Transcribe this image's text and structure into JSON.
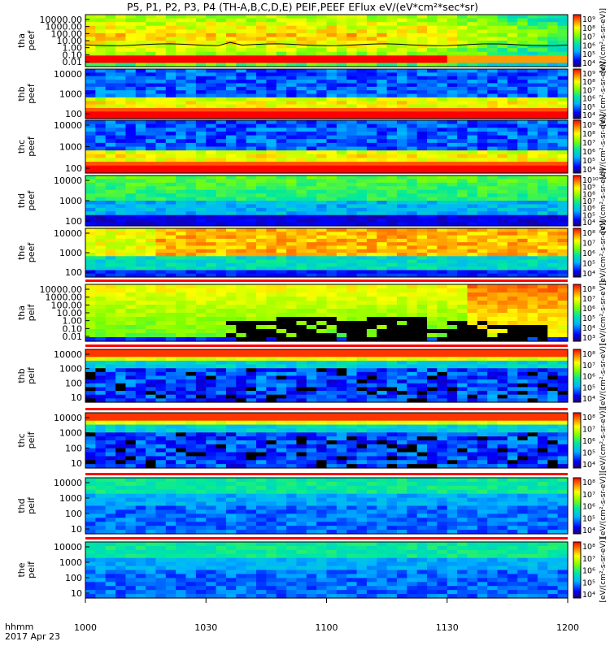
{
  "title": "P5, P1, P2, P3, P4 (TH-A,B,C,D,E) PEIF,PEEF EFlux eV/(eV*cm²*sec*sr)",
  "footer": {
    "time_label": "hhmm",
    "date": "2017 Apr 23"
  },
  "x_ticks": [
    "1000",
    "1030",
    "1100",
    "1130",
    "1200"
  ],
  "colorbar_label": "[eV/(cm²-s-sr-eV)]",
  "chart_data": [
    {
      "type": "heatmap",
      "id": "tha_peef",
      "ylabel": [
        "tha",
        "peef"
      ],
      "yticks": [
        "10000.00",
        "1000.00",
        "100.00",
        "10.00",
        "1.00",
        "0.10",
        "0.01"
      ],
      "cbar_ticks": [
        "10⁹",
        "10⁸",
        "10⁷",
        "10⁶",
        "10⁵",
        "10⁴"
      ],
      "overlay_line": true,
      "pattern": "electron-A"
    },
    {
      "type": "heatmap",
      "id": "thb_peef",
      "ylabel": [
        "thb",
        "peef"
      ],
      "yticks": [
        "10000",
        "1000",
        "100"
      ],
      "cbar_ticks": [
        "10⁹",
        "10⁸",
        "10⁷",
        "10⁶",
        "10⁵",
        "10⁴"
      ],
      "pattern": "electron-B"
    },
    {
      "type": "heatmap",
      "id": "thc_peef",
      "ylabel": [
        "thc",
        "peef"
      ],
      "yticks": [
        "10000",
        "1000",
        "100"
      ],
      "cbar_ticks": [
        "10⁹",
        "10⁸",
        "10⁷",
        "10⁶",
        "10⁵",
        "10⁴"
      ],
      "pattern": "electron-B"
    },
    {
      "type": "heatmap",
      "id": "thd_peef",
      "ylabel": [
        "thd",
        "peef"
      ],
      "yticks": [
        "10000",
        "1000",
        "100"
      ],
      "cbar_ticks": [
        "10¹⁰",
        "10⁹",
        "10⁸",
        "10⁷",
        "10⁶",
        "10⁵",
        "10⁴"
      ],
      "pattern": "electron-D"
    },
    {
      "type": "heatmap",
      "id": "the_peef",
      "ylabel": [
        "the",
        "peef"
      ],
      "yticks": [
        "10000",
        "1000",
        "100"
      ],
      "cbar_ticks": [
        "10⁸",
        "10⁷",
        "10⁶",
        "10⁵",
        "10⁴"
      ],
      "pattern": "electron-E"
    },
    {
      "type": "heatmap",
      "id": "tha_peif",
      "ylabel": [
        "tha",
        "peif"
      ],
      "yticks": [
        "10000.00",
        "1000.00",
        "100.00",
        "10.00",
        "1.00",
        "0.10",
        "0.01"
      ],
      "cbar_ticks": [
        "10⁸",
        "10⁷",
        "10⁶",
        "10⁵",
        "10⁴",
        "10³"
      ],
      "pattern": "ion-A"
    },
    {
      "type": "heatmap",
      "id": "thb_peif",
      "ylabel": [
        "thb",
        "peif"
      ],
      "yticks": [
        "10000",
        "1000",
        "100",
        "10"
      ],
      "cbar_ticks": [
        "10⁸",
        "10⁷",
        "10⁶",
        "10⁵",
        "10⁴"
      ],
      "pattern": "ion-B"
    },
    {
      "type": "heatmap",
      "id": "thc_peif",
      "ylabel": [
        "thc",
        "peif"
      ],
      "yticks": [
        "10000",
        "1000",
        "100",
        "10"
      ],
      "cbar_ticks": [
        "10⁸",
        "10⁷",
        "10⁶",
        "10⁵",
        "10⁴"
      ],
      "pattern": "ion-B"
    },
    {
      "type": "heatmap",
      "id": "thd_peif",
      "ylabel": [
        "thd",
        "peif"
      ],
      "yticks": [
        "10000",
        "1000",
        "100",
        "10"
      ],
      "cbar_ticks": [
        "10⁸",
        "10⁷",
        "10⁶",
        "10⁵",
        "10⁴"
      ],
      "pattern": "ion-D"
    },
    {
      "type": "heatmap",
      "id": "the_peif",
      "ylabel": [
        "the",
        "peif"
      ],
      "yticks": [
        "10000",
        "1000",
        "100",
        "10"
      ],
      "cbar_ticks": [
        "10⁸",
        "10⁷",
        "10⁶",
        "10⁵",
        "10⁴"
      ],
      "pattern": "ion-D"
    }
  ]
}
